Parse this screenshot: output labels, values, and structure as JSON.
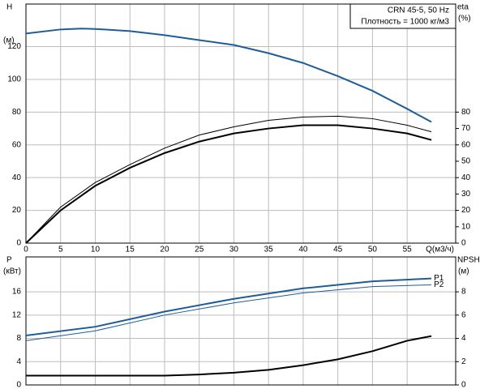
{
  "chart_data": [
    {
      "type": "line",
      "xlim": [
        0,
        62
      ],
      "xticks": [
        0,
        5,
        10,
        15,
        20,
        25,
        30,
        35,
        40,
        45,
        50,
        55
      ],
      "xlabel": "Q(м3/ч)",
      "ylim": [
        0,
        146
      ],
      "yticks": [
        0,
        20,
        40,
        60,
        80,
        100,
        120
      ],
      "ylabel": "H",
      "yunit": "(м)",
      "y2lim": [
        0,
        146
      ],
      "y2ticks": [
        0,
        10,
        20,
        30,
        40,
        50,
        60,
        70,
        80
      ],
      "y2label": "eta",
      "y2unit": "(%)",
      "annotations": [
        "CRN 45-5, 50 Hz",
        "Плотность = 1000 кг/м3"
      ],
      "grid": true,
      "series": [
        {
          "color": "#1f5d96",
          "width": 2,
          "x": [
            0,
            5,
            8,
            10,
            15,
            20,
            25,
            30,
            35,
            40,
            45,
            50,
            55,
            58.5
          ],
          "values": [
            128,
            130.5,
            131,
            130.8,
            129.5,
            127,
            124,
            121,
            116,
            110,
            102,
            93,
            82,
            74
          ]
        },
        {
          "color": "#000000",
          "width": 1,
          "axis": "y2",
          "x": [
            0,
            5,
            10,
            15,
            20,
            25,
            30,
            35,
            40,
            45,
            50,
            55,
            58.5
          ],
          "values": [
            0,
            22,
            37,
            48,
            58,
            66,
            71,
            75,
            77,
            77.5,
            76,
            72,
            68
          ]
        },
        {
          "color": "#000000",
          "width": 2,
          "axis": "y2",
          "x": [
            0,
            5,
            10,
            15,
            20,
            25,
            30,
            35,
            40,
            45,
            50,
            55,
            58.5
          ],
          "values": [
            0,
            20,
            35,
            46,
            55,
            62,
            67,
            70,
            72,
            72,
            70,
            67,
            63
          ]
        }
      ]
    },
    {
      "type": "line",
      "xlim": [
        0,
        62
      ],
      "xticks": [
        0,
        5,
        10,
        15,
        20,
        25,
        30,
        35,
        40,
        45,
        50,
        55
      ],
      "ylim": [
        0,
        22
      ],
      "yticks": [
        0,
        4,
        8,
        12,
        16
      ],
      "ylabel": "P",
      "yunit": "(кВт)",
      "y2lim": [
        0,
        11
      ],
      "y2ticks": [
        0,
        2,
        4,
        6,
        8
      ],
      "y2label": "NPSH",
      "y2unit": "(м)",
      "grid": true,
      "series": [
        {
          "name": "P1",
          "color": "#1f5d96",
          "width": 2,
          "x": [
            0,
            10,
            20,
            30,
            40,
            50,
            58.5
          ],
          "values": [
            8.5,
            10,
            12.6,
            14.8,
            16.6,
            17.8,
            18.3
          ]
        },
        {
          "name": "P2",
          "color": "#1f5d96",
          "width": 1,
          "x": [
            0,
            10,
            20,
            30,
            40,
            50,
            58.5
          ],
          "values": [
            7.6,
            9.3,
            12,
            14.1,
            15.8,
            16.9,
            17.2
          ]
        },
        {
          "color": "#000000",
          "width": 2,
          "axis": "y2",
          "x": [
            0,
            10,
            20,
            25,
            30,
            35,
            40,
            45,
            50,
            55,
            58.5
          ],
          "values": [
            0.8,
            0.8,
            0.8,
            0.9,
            1.05,
            1.3,
            1.7,
            2.2,
            2.9,
            3.8,
            4.2
          ]
        }
      ]
    }
  ]
}
